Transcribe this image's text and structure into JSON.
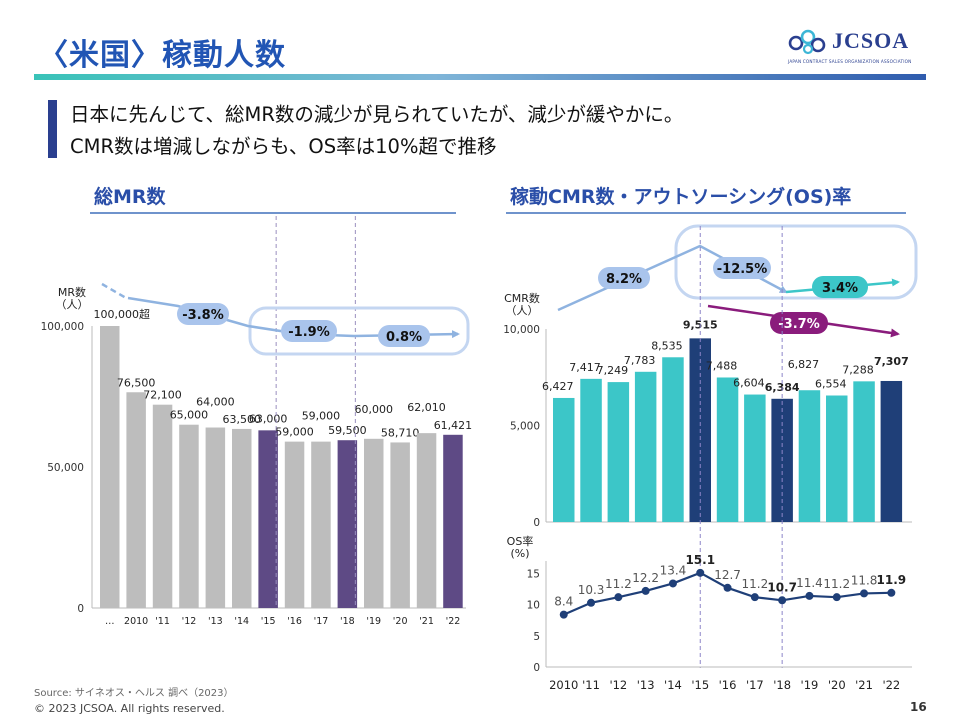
{
  "header": {
    "title": "〈米国〉稼動人数",
    "logo": {
      "text": "JCSOA",
      "subtext": "JAPAN CONTRACT SALES ORGANIZATION ASSOCIATION"
    },
    "subtitle_lines": [
      "日本に先んじて、総MR数の減少が見られていたが、減少が緩やかに。",
      "CMR数は増減しながらも、OS率は10%超で推移"
    ]
  },
  "footer": {
    "source": "Source: サイネオス・ヘルス 調べ（2023）",
    "copyright": "© 2023 JCSOA. All rights reserved.",
    "page_number": "16"
  },
  "colors": {
    "title": "#2155b4",
    "gray_bar": "#bdbdbd",
    "purple_bar": "#5e4a85",
    "teal_bar": "#3cc6c8",
    "navy_bar": "#1f3f78",
    "os_line": "#1f3f78",
    "arrow_light": "#8fb3e0",
    "arrow_teal": "#3cc6c8",
    "arrow_purple": "#8a1c7c"
  },
  "chart_data": [
    {
      "type": "bar",
      "title": "総MR数",
      "ylabel": "MR数\n（人）",
      "categories": [
        "…",
        "2010",
        "'11",
        "'12",
        "'13",
        "'14",
        "'15",
        "'16",
        "'17",
        "'18",
        "'19",
        "'20",
        "'21",
        "'22"
      ],
      "values": [
        100000,
        76500,
        72100,
        65000,
        64000,
        63500,
        63000,
        59000,
        59000,
        59500,
        60000,
        58710,
        62010,
        61421
      ],
      "labels": [
        "100,000超",
        "76,500",
        "72,100",
        "65,000",
        "64,000",
        "63,500",
        "63,000",
        "59,000",
        "59,000",
        "59,500",
        "60,000",
        "58,710",
        "62,010",
        "61,421"
      ],
      "highlighted": [
        6,
        9,
        13
      ],
      "ylim": [
        0,
        100000
      ],
      "yticks": [
        0,
        50000,
        100000
      ],
      "ytick_labels": [
        "0",
        "50,000",
        "100,000"
      ],
      "annotations": [
        {
          "text": "-3.8%",
          "from": 0,
          "to": 6
        },
        {
          "text": "-1.9%",
          "from": 6,
          "to": 9
        },
        {
          "text": "0.8%",
          "from": 9,
          "to": 13
        }
      ],
      "grid": false
    },
    {
      "type": "bar",
      "title": "稼動CMR数・アウトソーシング(OS)率",
      "ylabel": "CMR数\n（人）",
      "categories": [
        "2010",
        "'11",
        "'12",
        "'13",
        "'14",
        "'15",
        "'16",
        "'17",
        "'18",
        "'19",
        "'20",
        "'21",
        "'22"
      ],
      "values": [
        6427,
        7417,
        7249,
        7783,
        8535,
        9515,
        7488,
        6604,
        6384,
        6827,
        6554,
        7288,
        7307
      ],
      "labels": [
        "6,427",
        "7,417",
        "7,249",
        "7,783",
        "8,535",
        "9,515",
        "7,488",
        "6,604",
        "6,384",
        "6,827",
        "6,554",
        "7,288",
        "7,307"
      ],
      "highlighted": [
        5,
        8,
        12
      ],
      "ylim": [
        0,
        10000
      ],
      "yticks": [
        0,
        5000,
        10000
      ],
      "ytick_labels": [
        "0",
        "5,000",
        "10,000"
      ],
      "annotations": [
        {
          "text": "8.2%",
          "from": 0,
          "to": 5
        },
        {
          "text": "-12.5%",
          "from": 5,
          "to": 8
        },
        {
          "text": "3.4%",
          "from": 8,
          "to": 12
        },
        {
          "text": "-3.7%",
          "from": 5,
          "to": 12
        }
      ],
      "grid": false
    },
    {
      "type": "line",
      "title": "",
      "ylabel": "OS率\n(%)",
      "categories": [
        "2010",
        "'11",
        "'12",
        "'13",
        "'14",
        "'15",
        "'16",
        "'17",
        "'18",
        "'19",
        "'20",
        "'21",
        "'22"
      ],
      "values": [
        8.4,
        10.3,
        11.2,
        12.2,
        13.4,
        15.1,
        12.7,
        11.2,
        10.7,
        11.4,
        11.2,
        11.8,
        11.9
      ],
      "labels": [
        "8.4",
        "10.3",
        "11.2",
        "12.2",
        "13.4",
        "15.1",
        "12.7",
        "11.2",
        "10.7",
        "11.4",
        "11.2",
        "11.8",
        "11.9"
      ],
      "highlighted": [
        5,
        8,
        12
      ],
      "ylim": [
        0,
        17
      ],
      "yticks": [
        0,
        5,
        10,
        15
      ],
      "ytick_labels": [
        "0",
        "5",
        "10",
        "15"
      ],
      "grid": false
    }
  ]
}
